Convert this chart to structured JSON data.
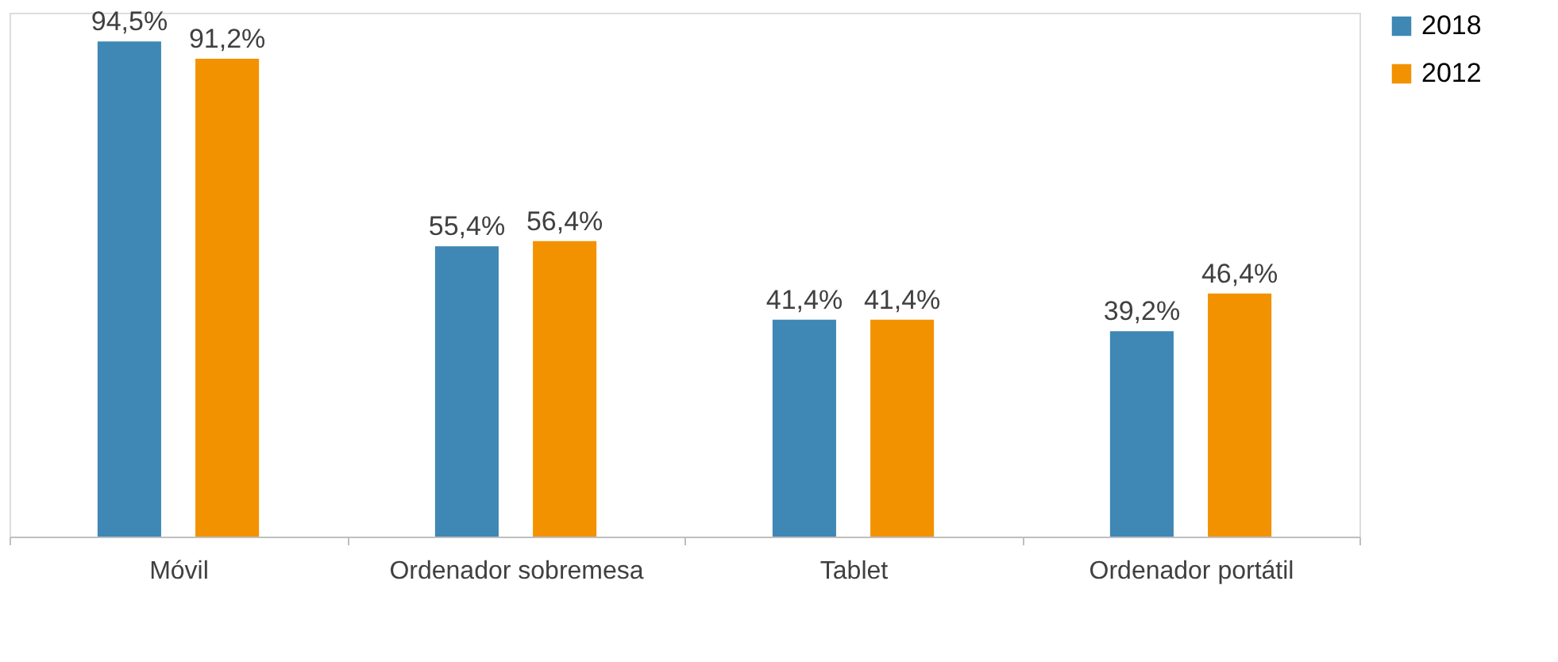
{
  "chart_data": {
    "type": "bar",
    "categories": [
      "Móvil",
      "Ordenador sobremesa",
      "Tablet",
      "Ordenador portátil"
    ],
    "series": [
      {
        "name": "2018",
        "color": "#3f87b5",
        "values": [
          94.5,
          55.4,
          41.4,
          39.2
        ],
        "value_labels": [
          "94,5%",
          "55,4%",
          "41,4%",
          "39,2%"
        ]
      },
      {
        "name": "2012",
        "color": "#f39200",
        "values": [
          91.2,
          56.4,
          41.4,
          46.4
        ],
        "value_labels": [
          "91,2%",
          "56,4%",
          "41,4%",
          "46,4%"
        ]
      }
    ],
    "legend": "right",
    "grid": false
  }
}
